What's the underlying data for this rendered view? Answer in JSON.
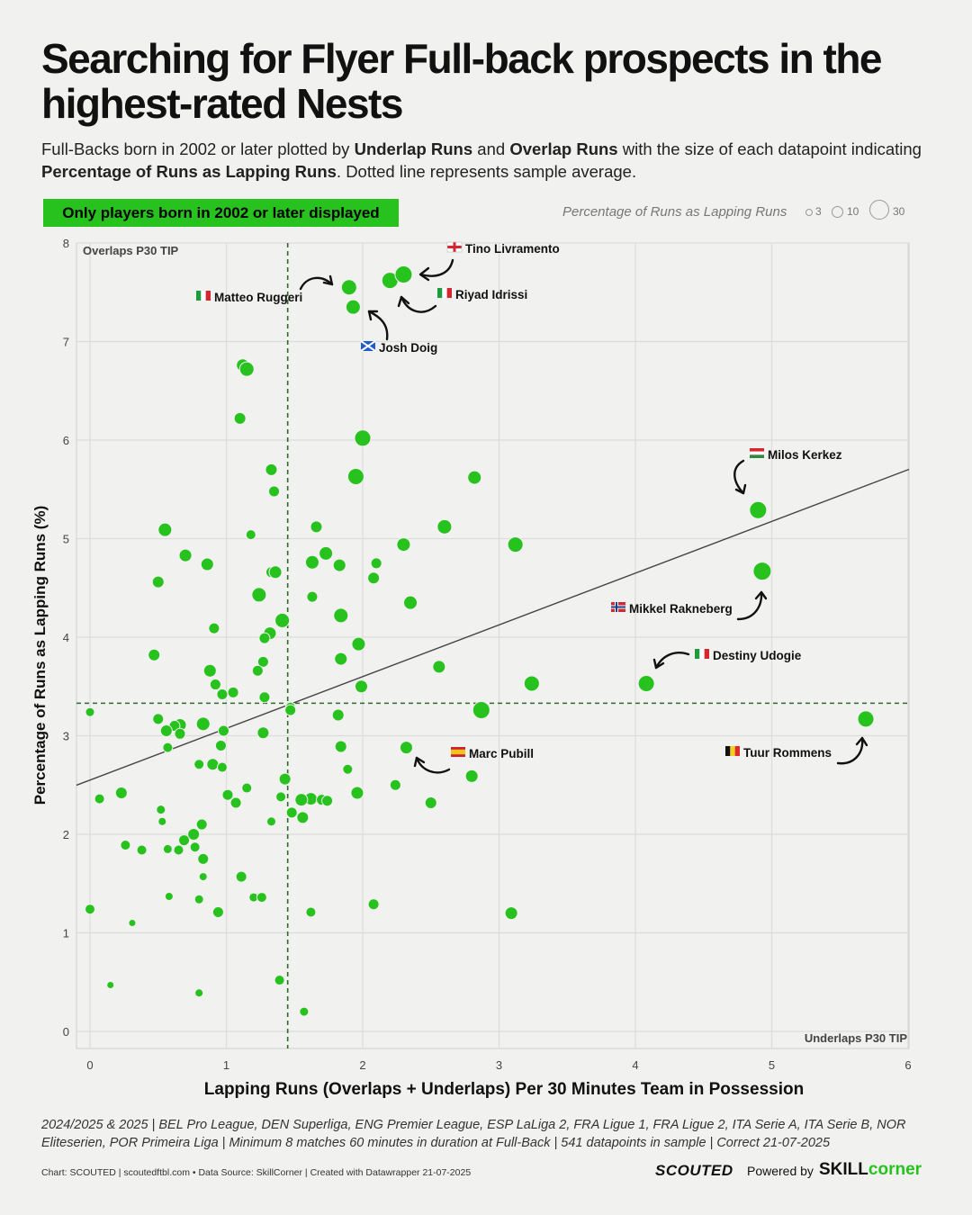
{
  "header": {
    "title": "Searching for Flyer Full-back prospects in the highest-rated Nests",
    "subtitle_parts": [
      "Full-Backs born in 2002 or later plotted by ",
      "Underlap Runs",
      " and ",
      "Overlap Runs",
      " with the size of each datapoint indicating ",
      "Percentage of Runs as Lapping Runs",
      ". Dotted line represents sample average."
    ]
  },
  "badge": "Only players born in 2002 or later displayed",
  "size_legend": {
    "label": "Percentage of Runs as Lapping Runs",
    "values": [
      "3",
      "10",
      "30"
    ]
  },
  "footnote": "2024/2025 & 2025 | BEL Pro League, DEN Superliga, ENG Premier League, ESP LaLiga 2, FRA Ligue 1, FRA Ligue 2, ITA Serie A, ITA Serie B, NOR Eliteserien, POR Primeira Liga | Minimum 8 matches 60 minutes in duration at Full-Back | 541 datapoints in sample | Correct 21-07-2025",
  "credits": "Chart: SCOUTED | scoutedftbl.com • Data Source: SkillCorner | Created with Datawrapper 21-07-2025",
  "branding": {
    "scouted": "SCOUTED",
    "powered": "Powered by",
    "skill": "SKILL",
    "corner": "corner"
  },
  "colors": {
    "accent": "#27c21e",
    "background": "#f1f1ef",
    "grid": "#dcdcdc",
    "dot": "#27c21e"
  },
  "chart_data": {
    "type": "scatter",
    "xlabel": "Lapping Runs (Overlaps + Underlaps) Per 30 Minutes Team in Possession",
    "ylabel": "Percentage of Runs as Lapping Runs (%)",
    "xlim": [
      0,
      6
    ],
    "ylim": [
      0,
      8
    ],
    "xticks": [
      0,
      1,
      2,
      3,
      4,
      5,
      6
    ],
    "yticks": [
      0,
      1,
      2,
      3,
      4,
      5,
      6,
      7,
      8
    ],
    "x_average": 1.45,
    "y_average": 3.33,
    "trendline": {
      "x0": 0,
      "y0": 2.55,
      "x1": 6,
      "y1": 5.7
    },
    "quadrant_labels": {
      "top_left": "Overlaps P30 TIP",
      "bottom_right": "Underlaps P30 TIP"
    },
    "points": [
      {
        "x": 1.9,
        "y": 7.55,
        "s": 16
      },
      {
        "x": 2.2,
        "y": 7.62,
        "s": 17
      },
      {
        "x": 2.3,
        "y": 7.68,
        "s": 18
      },
      {
        "x": 1.93,
        "y": 7.35,
        "s": 15
      },
      {
        "x": 1.12,
        "y": 6.76,
        "s": 13
      },
      {
        "x": 1.15,
        "y": 6.72,
        "s": 15
      },
      {
        "x": 1.1,
        "y": 6.22,
        "s": 12
      },
      {
        "x": 2.0,
        "y": 6.02,
        "s": 17
      },
      {
        "x": 1.33,
        "y": 5.7,
        "s": 12
      },
      {
        "x": 1.95,
        "y": 5.63,
        "s": 17
      },
      {
        "x": 2.82,
        "y": 5.62,
        "s": 14
      },
      {
        "x": 1.35,
        "y": 5.48,
        "s": 11
      },
      {
        "x": 4.9,
        "y": 5.29,
        "s": 18
      },
      {
        "x": 0.55,
        "y": 5.09,
        "s": 14
      },
      {
        "x": 1.66,
        "y": 5.12,
        "s": 12
      },
      {
        "x": 2.6,
        "y": 5.12,
        "s": 15
      },
      {
        "x": 1.18,
        "y": 5.04,
        "s": 10
      },
      {
        "x": 2.3,
        "y": 4.94,
        "s": 14
      },
      {
        "x": 3.12,
        "y": 4.94,
        "s": 16
      },
      {
        "x": 0.7,
        "y": 4.83,
        "s": 13
      },
      {
        "x": 1.73,
        "y": 4.85,
        "s": 14
      },
      {
        "x": 1.63,
        "y": 4.76,
        "s": 14
      },
      {
        "x": 1.83,
        "y": 4.73,
        "s": 13
      },
      {
        "x": 0.86,
        "y": 4.74,
        "s": 13
      },
      {
        "x": 2.1,
        "y": 4.75,
        "s": 11
      },
      {
        "x": 1.33,
        "y": 4.66,
        "s": 11
      },
      {
        "x": 1.36,
        "y": 4.66,
        "s": 13
      },
      {
        "x": 4.93,
        "y": 4.67,
        "s": 19
      },
      {
        "x": 2.08,
        "y": 4.6,
        "s": 12
      },
      {
        "x": 0.5,
        "y": 4.56,
        "s": 12
      },
      {
        "x": 1.24,
        "y": 4.43,
        "s": 15
      },
      {
        "x": 1.63,
        "y": 4.41,
        "s": 11
      },
      {
        "x": 2.35,
        "y": 4.35,
        "s": 14
      },
      {
        "x": 1.84,
        "y": 4.22,
        "s": 15
      },
      {
        "x": 1.41,
        "y": 4.17,
        "s": 15
      },
      {
        "x": 0.91,
        "y": 4.09,
        "s": 11
      },
      {
        "x": 1.32,
        "y": 4.04,
        "s": 13
      },
      {
        "x": 1.28,
        "y": 3.99,
        "s": 11
      },
      {
        "x": 1.97,
        "y": 3.93,
        "s": 14
      },
      {
        "x": 0.47,
        "y": 3.82,
        "s": 12
      },
      {
        "x": 1.84,
        "y": 3.78,
        "s": 13
      },
      {
        "x": 1.27,
        "y": 3.75,
        "s": 11
      },
      {
        "x": 2.56,
        "y": 3.7,
        "s": 13
      },
      {
        "x": 0.88,
        "y": 3.66,
        "s": 13
      },
      {
        "x": 1.23,
        "y": 3.66,
        "s": 11
      },
      {
        "x": 4.08,
        "y": 3.53,
        "s": 17
      },
      {
        "x": 3.24,
        "y": 3.53,
        "s": 16
      },
      {
        "x": 0.92,
        "y": 3.52,
        "s": 11
      },
      {
        "x": 1.99,
        "y": 3.5,
        "s": 13
      },
      {
        "x": 1.05,
        "y": 3.44,
        "s": 11
      },
      {
        "x": 0.97,
        "y": 3.42,
        "s": 11
      },
      {
        "x": 1.28,
        "y": 3.39,
        "s": 11
      },
      {
        "x": 1.47,
        "y": 3.29,
        "s": 10
      },
      {
        "x": 1.47,
        "y": 3.26,
        "s": 11
      },
      {
        "x": 2.87,
        "y": 3.26,
        "s": 18
      },
      {
        "x": 5.69,
        "y": 3.17,
        "s": 17
      },
      {
        "x": 0.0,
        "y": 3.24,
        "s": 9
      },
      {
        "x": 1.82,
        "y": 3.21,
        "s": 12
      },
      {
        "x": 0.5,
        "y": 3.17,
        "s": 11
      },
      {
        "x": 0.66,
        "y": 3.11,
        "s": 13
      },
      {
        "x": 0.62,
        "y": 3.1,
        "s": 11
      },
      {
        "x": 0.83,
        "y": 3.12,
        "s": 14
      },
      {
        "x": 0.56,
        "y": 3.05,
        "s": 12
      },
      {
        "x": 0.66,
        "y": 3.02,
        "s": 11
      },
      {
        "x": 0.98,
        "y": 3.05,
        "s": 11
      },
      {
        "x": 1.27,
        "y": 3.03,
        "s": 12
      },
      {
        "x": 0.57,
        "y": 2.88,
        "s": 10
      },
      {
        "x": 0.96,
        "y": 2.9,
        "s": 11
      },
      {
        "x": 1.84,
        "y": 2.89,
        "s": 12
      },
      {
        "x": 2.32,
        "y": 2.88,
        "s": 13
      },
      {
        "x": 0.8,
        "y": 2.71,
        "s": 10
      },
      {
        "x": 0.9,
        "y": 2.71,
        "s": 12
      },
      {
        "x": 0.97,
        "y": 2.68,
        "s": 10
      },
      {
        "x": 1.89,
        "y": 2.66,
        "s": 10
      },
      {
        "x": 2.8,
        "y": 2.59,
        "s": 13
      },
      {
        "x": 1.43,
        "y": 2.56,
        "s": 12
      },
      {
        "x": 1.15,
        "y": 2.47,
        "s": 10
      },
      {
        "x": 2.24,
        "y": 2.5,
        "s": 11
      },
      {
        "x": 0.23,
        "y": 2.42,
        "s": 12
      },
      {
        "x": 1.01,
        "y": 2.4,
        "s": 11
      },
      {
        "x": 1.96,
        "y": 2.42,
        "s": 13
      },
      {
        "x": 0.07,
        "y": 2.36,
        "s": 10
      },
      {
        "x": 1.4,
        "y": 2.38,
        "s": 10
      },
      {
        "x": 1.62,
        "y": 2.36,
        "s": 13
      },
      {
        "x": 1.55,
        "y": 2.35,
        "s": 13
      },
      {
        "x": 1.7,
        "y": 2.35,
        "s": 11
      },
      {
        "x": 1.74,
        "y": 2.34,
        "s": 11
      },
      {
        "x": 1.07,
        "y": 2.32,
        "s": 11
      },
      {
        "x": 2.5,
        "y": 2.32,
        "s": 12
      },
      {
        "x": 0.52,
        "y": 2.25,
        "s": 9
      },
      {
        "x": 1.48,
        "y": 2.22,
        "s": 11
      },
      {
        "x": 1.56,
        "y": 2.17,
        "s": 12
      },
      {
        "x": 0.53,
        "y": 2.13,
        "s": 8
      },
      {
        "x": 1.33,
        "y": 2.13,
        "s": 9
      },
      {
        "x": 0.82,
        "y": 2.1,
        "s": 11
      },
      {
        "x": 0.76,
        "y": 2.0,
        "s": 12
      },
      {
        "x": 0.69,
        "y": 1.94,
        "s": 11
      },
      {
        "x": 0.26,
        "y": 1.89,
        "s": 10
      },
      {
        "x": 0.38,
        "y": 1.84,
        "s": 10
      },
      {
        "x": 0.57,
        "y": 1.85,
        "s": 9
      },
      {
        "x": 0.65,
        "y": 1.84,
        "s": 10
      },
      {
        "x": 0.77,
        "y": 1.87,
        "s": 10
      },
      {
        "x": 0.83,
        "y": 1.75,
        "s": 11
      },
      {
        "x": 0.83,
        "y": 1.57,
        "s": 8
      },
      {
        "x": 1.11,
        "y": 1.57,
        "s": 11
      },
      {
        "x": 0.58,
        "y": 1.37,
        "s": 8
      },
      {
        "x": 0.8,
        "y": 1.34,
        "s": 9
      },
      {
        "x": 1.2,
        "y": 1.36,
        "s": 9
      },
      {
        "x": 1.26,
        "y": 1.36,
        "s": 10
      },
      {
        "x": 2.08,
        "y": 1.29,
        "s": 11
      },
      {
        "x": 0.0,
        "y": 1.24,
        "s": 10
      },
      {
        "x": 0.94,
        "y": 1.21,
        "s": 11
      },
      {
        "x": 1.62,
        "y": 1.21,
        "s": 10
      },
      {
        "x": 3.09,
        "y": 1.2,
        "s": 13
      },
      {
        "x": 0.31,
        "y": 1.1,
        "s": 7
      },
      {
        "x": 0.15,
        "y": 0.47,
        "s": 7
      },
      {
        "x": 0.8,
        "y": 0.39,
        "s": 8
      },
      {
        "x": 1.39,
        "y": 0.52,
        "s": 10
      },
      {
        "x": 1.57,
        "y": 0.2,
        "s": 9
      }
    ],
    "annotations": [
      {
        "name": "Tino Livramento",
        "flag": "eng",
        "lx": 517,
        "ly": 281
      },
      {
        "name": "Matteo Ruggeri",
        "flag": "ita",
        "lx": 238,
        "ly": 335
      },
      {
        "name": "Riyad Idrissi",
        "flag": "ita",
        "lx": 506,
        "ly": 332
      },
      {
        "name": "Josh Doig",
        "flag": "sco",
        "lx": 421,
        "ly": 391
      },
      {
        "name": "Milos Kerkez",
        "flag": "hun",
        "lx": 853,
        "ly": 510
      },
      {
        "name": "Mikkel Rakneberg",
        "flag": "nor",
        "lx": 699,
        "ly": 681
      },
      {
        "name": "Destiny Udogie",
        "flag": "ita",
        "lx": 792,
        "ly": 733
      },
      {
        "name": "Marc Pubill",
        "flag": "esp",
        "lx": 521,
        "ly": 842
      },
      {
        "name": "Tuur Rommens",
        "flag": "bel",
        "lx": 826,
        "ly": 841
      }
    ]
  }
}
